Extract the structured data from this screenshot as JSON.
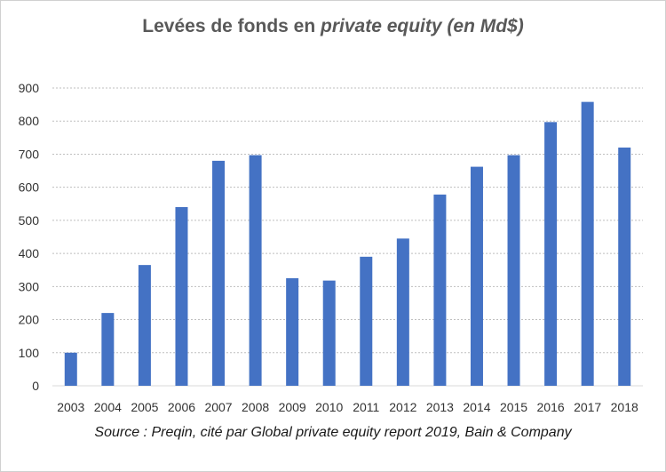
{
  "title": {
    "main": "Levées de fonds en ",
    "italic": "private equity (en Md$)"
  },
  "source": "Source : Preqin, cité par Global private equity report 2019, Bain & Company",
  "chart_data": {
    "type": "bar",
    "categories": [
      "2003",
      "2004",
      "2005",
      "2006",
      "2007",
      "2008",
      "2009",
      "2010",
      "2011",
      "2012",
      "2013",
      "2014",
      "2015",
      "2016",
      "2017",
      "2018"
    ],
    "values": [
      100,
      220,
      365,
      540,
      680,
      697,
      325,
      318,
      390,
      445,
      578,
      662,
      697,
      797,
      858,
      720
    ],
    "yticks": [
      0,
      100,
      200,
      300,
      400,
      500,
      600,
      700,
      800,
      900
    ],
    "ylim": [
      0,
      900
    ],
    "grid": true,
    "bar_color": "#4472c4",
    "grid_color": "#bfbfbf",
    "axis_color": "#d9d9d9"
  }
}
